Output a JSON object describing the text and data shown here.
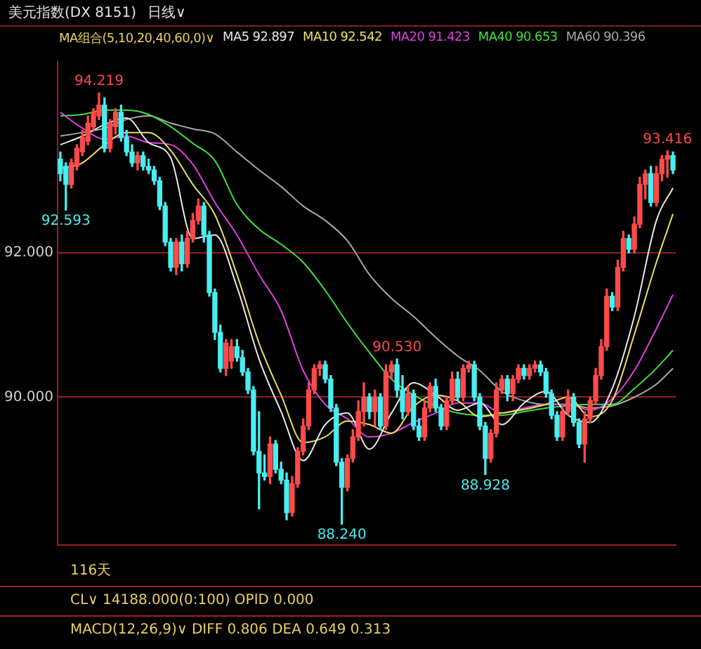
{
  "chart_data": {
    "type": "candlestick",
    "title": "美元指数(DX 8151)",
    "subtitle": "日线∨",
    "legend_title": "MA组合(5,10,20,40,60,0)∨",
    "legend": "top",
    "grid": "y",
    "tick_labels": "y",
    "ylim": [
      87.95,
      94.65
    ],
    "yticks": [
      {
        "value": 92,
        "label": "92.000"
      },
      {
        "value": 90,
        "label": "90.000"
      }
    ],
    "categories": [
      null,
      null,
      null,
      null,
      null,
      null,
      null,
      null,
      null,
      null,
      null,
      null,
      null,
      null,
      null,
      null,
      null,
      null,
      null,
      null,
      null,
      null,
      null,
      null,
      null,
      null,
      null,
      null,
      null,
      null,
      null,
      null,
      null,
      null,
      null,
      null,
      null,
      null,
      null,
      null,
      null,
      null,
      null,
      null,
      null,
      null,
      null,
      null,
      null,
      null,
      null,
      null,
      null,
      null,
      null,
      null,
      null,
      null,
      null,
      null,
      null,
      null,
      null,
      null,
      null,
      null,
      null,
      null,
      null,
      null,
      null,
      null,
      null,
      null,
      null,
      null,
      null,
      null,
      null,
      null,
      null,
      null,
      null,
      null,
      null,
      null,
      null,
      null,
      null,
      null,
      null,
      null,
      null,
      null,
      null,
      null,
      null,
      null,
      null,
      null,
      null,
      null,
      null,
      null,
      null,
      null,
      null,
      null,
      null,
      null,
      null,
      null
    ],
    "ohlc": [
      [
        93.3,
        93.4,
        93.0,
        93.1
      ],
      [
        93.2,
        93.25,
        92.593,
        92.95
      ],
      [
        92.95,
        93.3,
        92.9,
        93.25
      ],
      [
        93.2,
        93.5,
        93.15,
        93.45
      ],
      [
        93.4,
        93.7,
        93.35,
        93.6
      ],
      [
        93.55,
        93.9,
        93.5,
        93.8
      ],
      [
        93.75,
        94.0,
        93.7,
        93.95
      ],
      [
        93.9,
        94.219,
        93.85,
        94.05
      ],
      [
        94.05,
        94.15,
        93.4,
        93.45
      ],
      [
        93.45,
        93.85,
        93.4,
        93.8
      ],
      [
        93.75,
        94.0,
        93.65,
        93.95
      ],
      [
        93.95,
        94.05,
        93.55,
        93.6
      ],
      [
        93.6,
        93.7,
        93.35,
        93.4
      ],
      [
        93.4,
        93.5,
        93.2,
        93.25
      ],
      [
        93.25,
        93.4,
        93.15,
        93.35
      ],
      [
        93.35,
        93.4,
        93.15,
        93.2
      ],
      [
        93.2,
        93.3,
        93.1,
        93.15
      ],
      [
        93.15,
        93.2,
        92.95,
        93.0
      ],
      [
        93.0,
        93.05,
        92.6,
        92.65
      ],
      [
        92.65,
        92.7,
        92.1,
        92.15
      ],
      [
        92.15,
        92.2,
        91.75,
        91.8
      ],
      [
        91.8,
        92.2,
        91.7,
        92.15
      ],
      [
        92.15,
        92.25,
        91.75,
        91.85
      ],
      [
        91.85,
        92.3,
        91.8,
        92.2
      ],
      [
        92.2,
        92.55,
        92.15,
        92.45
      ],
      [
        92.45,
        92.75,
        92.4,
        92.65
      ],
      [
        92.65,
        92.7,
        92.15,
        92.25
      ],
      [
        92.25,
        92.3,
        91.4,
        91.45
      ],
      [
        91.45,
        91.5,
        90.8,
        90.9
      ],
      [
        90.9,
        91.0,
        90.35,
        90.4
      ],
      [
        90.4,
        90.8,
        90.3,
        90.75
      ],
      [
        90.5,
        90.8,
        90.4,
        90.7
      ],
      [
        90.7,
        90.8,
        90.5,
        90.55
      ],
      [
        90.55,
        90.65,
        90.3,
        90.35
      ],
      [
        90.35,
        90.4,
        90.05,
        90.1
      ],
      [
        90.1,
        90.15,
        89.2,
        89.25
      ],
      [
        89.25,
        89.8,
        88.45,
        88.95
      ],
      [
        88.95,
        89.2,
        88.85,
        88.9
      ],
      [
        88.9,
        89.45,
        88.8,
        89.35
      ],
      [
        89.35,
        89.4,
        88.95,
        89.0
      ],
      [
        89.0,
        89.1,
        88.8,
        88.85
      ],
      [
        88.85,
        88.95,
        88.3,
        88.4
      ],
      [
        88.4,
        88.9,
        88.35,
        88.8
      ],
      [
        88.8,
        89.3,
        88.75,
        89.25
      ],
      [
        89.25,
        89.7,
        89.2,
        89.6
      ],
      [
        89.6,
        90.2,
        89.55,
        90.1
      ],
      [
        90.1,
        90.45,
        90.05,
        90.4
      ],
      [
        90.4,
        90.5,
        90.3,
        90.45
      ],
      [
        90.45,
        90.5,
        90.2,
        90.25
      ],
      [
        90.25,
        90.3,
        89.8,
        89.85
      ],
      [
        89.85,
        89.9,
        89.05,
        89.1
      ],
      [
        89.1,
        89.15,
        88.24,
        88.75
      ],
      [
        88.75,
        89.2,
        88.7,
        89.15
      ],
      [
        89.15,
        89.55,
        89.1,
        89.45
      ],
      [
        89.45,
        89.95,
        89.4,
        89.8
      ],
      [
        89.8,
        90.2,
        89.6,
        90.0
      ],
      [
        90.0,
        90.05,
        89.7,
        89.8
      ],
      [
        89.8,
        90.1,
        89.6,
        90.0
      ],
      [
        90.0,
        90.05,
        89.55,
        89.6
      ],
      [
        89.6,
        90.45,
        89.55,
        90.35
      ],
      [
        90.35,
        90.5,
        90.25,
        90.45
      ],
      [
        90.45,
        90.53,
        90.0,
        90.1
      ],
      [
        90.1,
        90.3,
        89.7,
        89.8
      ],
      [
        89.8,
        90.15,
        89.75,
        90.05
      ],
      [
        90.05,
        90.1,
        89.55,
        89.6
      ],
      [
        89.6,
        89.7,
        89.4,
        89.45
      ],
      [
        89.45,
        89.95,
        89.4,
        89.85
      ],
      [
        89.85,
        90.2,
        89.8,
        90.15
      ],
      [
        90.15,
        90.25,
        89.8,
        89.85
      ],
      [
        89.85,
        89.9,
        89.55,
        89.6
      ],
      [
        89.6,
        90.0,
        89.55,
        89.95
      ],
      [
        89.95,
        90.35,
        89.9,
        90.25
      ],
      [
        90.25,
        90.35,
        89.95,
        90.0
      ],
      [
        90.0,
        90.45,
        89.95,
        90.4
      ],
      [
        90.4,
        90.5,
        90.35,
        90.45
      ],
      [
        90.45,
        90.5,
        89.95,
        90.0
      ],
      [
        90.0,
        90.05,
        89.55,
        89.6
      ],
      [
        89.6,
        89.65,
        88.928,
        89.15
      ],
      [
        89.15,
        89.55,
        89.1,
        89.5
      ],
      [
        89.5,
        90.2,
        89.45,
        90.1
      ],
      [
        90.1,
        90.3,
        90.05,
        90.25
      ],
      [
        90.25,
        90.3,
        89.95,
        90.05
      ],
      [
        90.05,
        90.3,
        89.95,
        90.25
      ],
      [
        90.25,
        90.45,
        90.2,
        90.4
      ],
      [
        90.4,
        90.45,
        90.25,
        90.3
      ],
      [
        90.3,
        90.45,
        90.25,
        90.4
      ],
      [
        90.4,
        90.5,
        90.35,
        90.45
      ],
      [
        90.45,
        90.5,
        90.3,
        90.35
      ],
      [
        90.35,
        90.4,
        90.0,
        90.05
      ],
      [
        90.05,
        90.1,
        89.7,
        89.75
      ],
      [
        89.75,
        89.8,
        89.4,
        89.45
      ],
      [
        89.45,
        89.85,
        89.4,
        89.8
      ],
      [
        89.8,
        90.1,
        89.75,
        90.0
      ],
      [
        90.0,
        90.05,
        89.6,
        89.65
      ],
      [
        89.65,
        89.7,
        89.3,
        89.35
      ],
      [
        89.35,
        89.8,
        89.1,
        89.7
      ],
      [
        89.7,
        90.0,
        89.65,
        89.95
      ],
      [
        89.95,
        90.4,
        89.9,
        90.3
      ],
      [
        90.3,
        90.8,
        90.25,
        90.7
      ],
      [
        90.7,
        91.5,
        90.65,
        91.4
      ],
      [
        91.4,
        91.45,
        91.2,
        91.25
      ],
      [
        91.25,
        91.9,
        91.2,
        91.8
      ],
      [
        91.8,
        92.3,
        91.75,
        92.2
      ],
      [
        92.2,
        92.25,
        92.0,
        92.05
      ],
      [
        92.05,
        92.5,
        92.0,
        92.4
      ],
      [
        92.4,
        93.05,
        92.35,
        92.95
      ],
      [
        92.95,
        93.15,
        92.75,
        93.1
      ],
      [
        93.1,
        93.2,
        92.65,
        92.7
      ],
      [
        92.7,
        93.2,
        92.65,
        93.1
      ],
      [
        93.1,
        93.35,
        93.0,
        93.3
      ],
      [
        93.3,
        93.416,
        93.05,
        93.35
      ],
      [
        93.35,
        93.4,
        93.1,
        93.15
      ]
    ],
    "series": [
      {
        "type": "line",
        "name": "MA5 92.897",
        "color": "#e8e8e8",
        "values": [
          93.5,
          null,
          null,
          null,
          93.62,
          null,
          null,
          null,
          93.78,
          null,
          null,
          null,
          93.87,
          null,
          null,
          null,
          93.53,
          null,
          null,
          null,
          93.32,
          null,
          null,
          null,
          92.2,
          null,
          null,
          null,
          92.25,
          null,
          null,
          null,
          91.53,
          null,
          null,
          null,
          90.53,
          null,
          null,
          null,
          89.8,
          null,
          null,
          null,
          89.12,
          null,
          null,
          null,
          89.62,
          null,
          null,
          null,
          89.78,
          null,
          null,
          null,
          89.28,
          null,
          null,
          null,
          89.78,
          null,
          null,
          null,
          90.2,
          null,
          null,
          null,
          90.03,
          null,
          null,
          null,
          89.82,
          null,
          null,
          null,
          89.92,
          null,
          null,
          null,
          89.62,
          null,
          null,
          null,
          89.92,
          null,
          null,
          null,
          90.08,
          null,
          null,
          null,
          89.75,
          null,
          null,
          null,
          89.65,
          null,
          null,
          null,
          90.12,
          null,
          null,
          null,
          91.12,
          null,
          null,
          null,
          92.45,
          null,
          null,
          92.9
        ]
      },
      {
        "type": "line",
        "name": "MA10 92.542",
        "color": "#e8e060",
        "values": [
          93.17,
          null,
          null,
          null,
          93.25,
          null,
          null,
          null,
          93.5,
          null,
          null,
          null,
          93.67,
          null,
          null,
          null,
          93.67,
          null,
          null,
          null,
          93.42,
          null,
          null,
          null,
          92.95,
          null,
          null,
          null,
          92.53,
          null,
          null,
          null,
          91.7,
          null,
          null,
          null,
          90.75,
          null,
          null,
          null,
          90.03,
          null,
          null,
          null,
          89.37,
          null,
          null,
          null,
          89.45,
          null,
          null,
          null,
          89.67,
          null,
          null,
          null,
          89.62,
          null,
          null,
          null,
          89.5,
          null,
          null,
          null,
          89.87,
          null,
          null,
          null,
          90.03,
          null,
          null,
          null,
          89.95,
          null,
          null,
          null,
          89.73,
          null,
          null,
          null,
          89.78,
          null,
          null,
          null,
          89.83,
          null,
          null,
          null,
          89.9,
          null,
          null,
          null,
          90.0,
          null,
          null,
          null,
          89.73,
          null,
          null,
          null,
          89.95,
          null,
          null,
          null,
          90.87,
          null,
          null,
          null,
          91.87,
          null,
          null,
          92.54
        ]
      },
      {
        "type": "line",
        "name": "MA20 91.423",
        "color": "#e040e0",
        "values": [
          93.95,
          null,
          null,
          null,
          93.73,
          null,
          null,
          null,
          93.58,
          null,
          null,
          null,
          93.62,
          null,
          null,
          null,
          93.53,
          null,
          null,
          null,
          93.5,
          null,
          null,
          null,
          93.23,
          null,
          null,
          null,
          92.7,
          null,
          null,
          null,
          92.25,
          null,
          null,
          null,
          91.7,
          null,
          null,
          null,
          91.2,
          null,
          null,
          null,
          90.37,
          null,
          null,
          null,
          89.9,
          null,
          null,
          null,
          89.7,
          null,
          null,
          null,
          89.45,
          null,
          null,
          null,
          89.5,
          null,
          null,
          null,
          89.65,
          null,
          null,
          null,
          89.78,
          null,
          null,
          null,
          89.92,
          null,
          null,
          null,
          89.92,
          null,
          null,
          null,
          89.78,
          null,
          null,
          null,
          89.85,
          null,
          null,
          null,
          89.9,
          null,
          null,
          null,
          89.9,
          null,
          null,
          null,
          89.82,
          null,
          null,
          null,
          89.98,
          null,
          null,
          null,
          90.37,
          null,
          null,
          null,
          90.95,
          null,
          null,
          91.42
        ]
      },
      {
        "type": "line",
        "name": "MA40 90.653",
        "color": "#40e040",
        "values": [
          93.9,
          null,
          null,
          null,
          93.92,
          null,
          null,
          null,
          93.98,
          null,
          null,
          null,
          93.98,
          null,
          null,
          null,
          93.92,
          null,
          null,
          null,
          93.75,
          null,
          null,
          null,
          93.52,
          null,
          null,
          null,
          93.28,
          null,
          null,
          null,
          92.67,
          null,
          null,
          null,
          92.33,
          null,
          null,
          null,
          92.12,
          null,
          null,
          null,
          91.87,
          null,
          null,
          null,
          91.48,
          null,
          null,
          null,
          91.03,
          null,
          null,
          null,
          90.62,
          null,
          null,
          null,
          90.25,
          null,
          null,
          null,
          90.03,
          null,
          null,
          null,
          89.88,
          null,
          null,
          null,
          89.78,
          null,
          null,
          null,
          89.75,
          null,
          null,
          null,
          89.75,
          null,
          null,
          null,
          89.8,
          null,
          null,
          null,
          89.85,
          null,
          null,
          null,
          89.88,
          null,
          null,
          null,
          89.9,
          null,
          null,
          null,
          89.9,
          null,
          null,
          null,
          90.12,
          null,
          null,
          null,
          90.4,
          null,
          null,
          90.65
        ]
      },
      {
        "type": "line",
        "name": "MA60 90.396",
        "color": "#a8a8a8",
        "values": [
          93.62,
          null,
          null,
          null,
          93.67,
          null,
          null,
          null,
          93.73,
          null,
          null,
          null,
          93.85,
          null,
          null,
          null,
          93.9,
          null,
          null,
          null,
          93.8,
          null,
          null,
          null,
          93.72,
          null,
          null,
          null,
          93.65,
          null,
          null,
          null,
          93.4,
          null,
          null,
          null,
          93.15,
          null,
          null,
          null,
          92.92,
          null,
          null,
          null,
          92.65,
          null,
          null,
          null,
          92.45,
          null,
          null,
          null,
          92.17,
          null,
          null,
          null,
          91.7,
          null,
          null,
          null,
          91.37,
          null,
          null,
          null,
          91.12,
          null,
          null,
          null,
          90.83,
          null,
          null,
          null,
          90.57,
          null,
          null,
          null,
          90.37,
          null,
          null,
          null,
          90.08,
          null,
          null,
          null,
          89.95,
          null,
          null,
          null,
          89.9,
          null,
          null,
          null,
          89.9,
          null,
          null,
          null,
          89.85,
          null,
          null,
          null,
          89.88,
          null,
          null,
          null,
          90.0,
          null,
          null,
          null,
          90.18,
          null,
          null,
          90.4
        ]
      }
    ],
    "annotations": [
      {
        "text": "94.219",
        "y": 94.219
      },
      {
        "text": "92.593",
        "y": 92.593
      },
      {
        "text": "90.530",
        "y": 90.53
      },
      {
        "text": "88.240",
        "y": 88.24
      },
      {
        "text": "88.928",
        "y": 88.928
      },
      {
        "text": "93.416",
        "y": 93.416
      },
      "116天",
      "CL∨ 14188.000(0:100)   OPID 0.000",
      "MACD(12,26,9)∨ DIFF 0.806   DEA 0.649   0.313"
    ]
  }
}
